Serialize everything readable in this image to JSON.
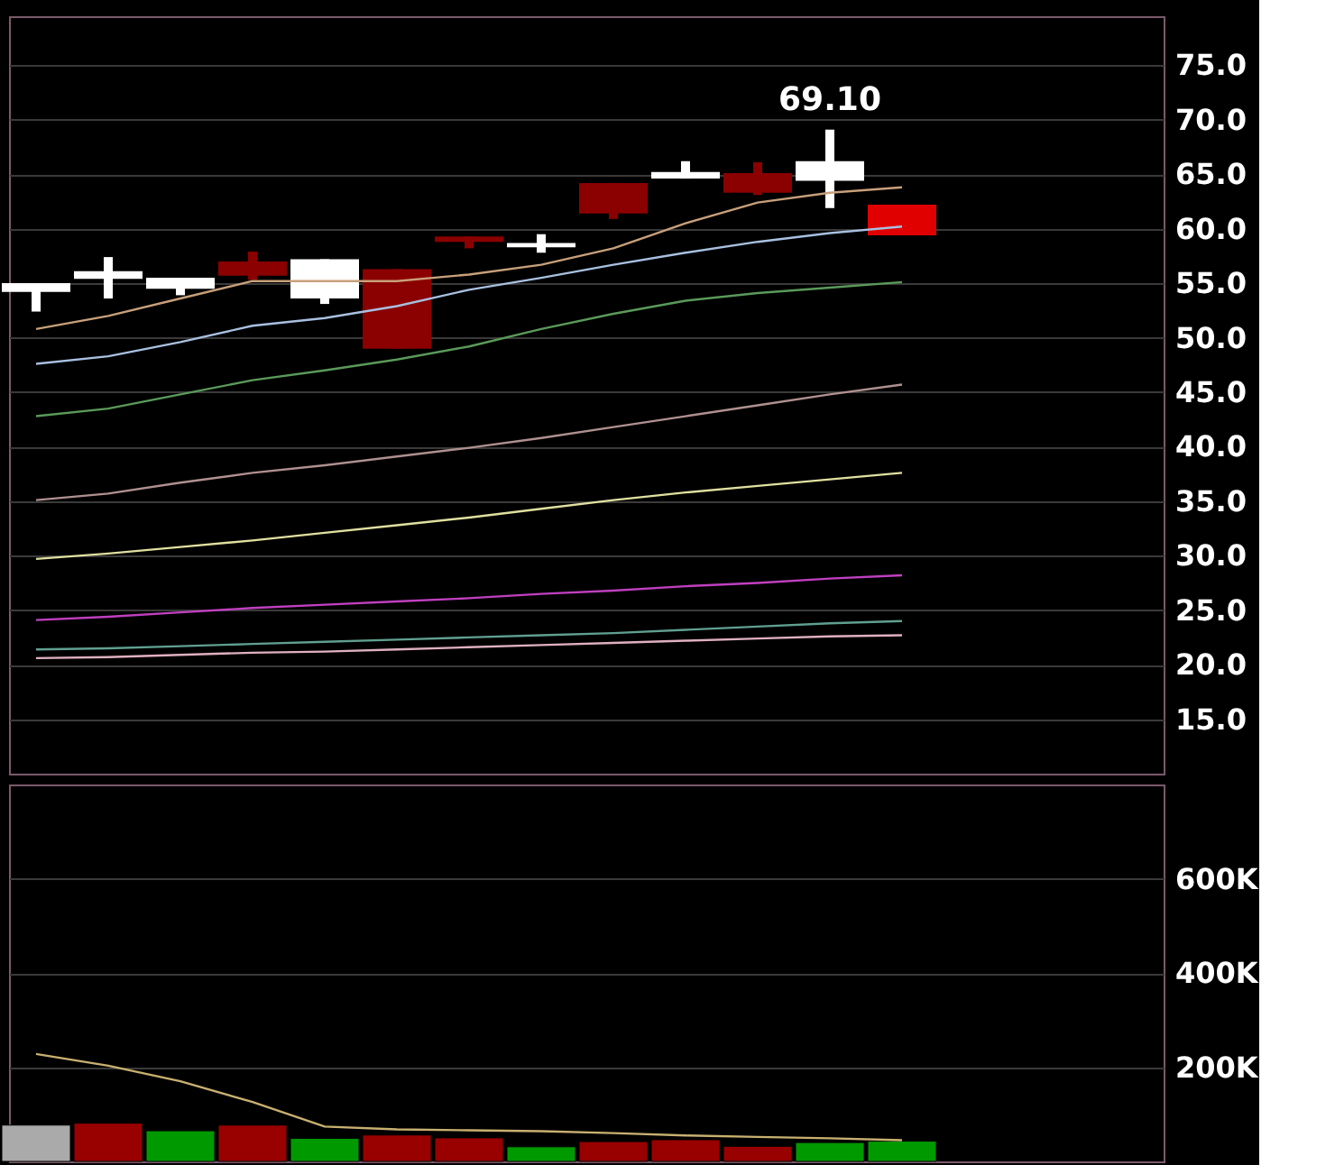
{
  "chart_data": [
    {
      "type": "candlestick",
      "categories": [
        null,
        null,
        null,
        null,
        null,
        null,
        null,
        null,
        null,
        null,
        null,
        null,
        null
      ],
      "ohlc": [
        [
          54.2,
          55.0,
          52.4,
          55.0
        ],
        [
          55.4,
          57.4,
          53.6,
          56.1
        ],
        [
          54.5,
          55.5,
          53.9,
          55.5
        ],
        [
          57.0,
          57.9,
          55.3,
          55.7
        ],
        [
          53.6,
          57.2,
          53.1,
          57.2
        ],
        [
          56.3,
          56.3,
          49.0,
          49.0
        ],
        [
          59.3,
          59.3,
          58.2,
          58.8
        ],
        [
          58.3,
          59.5,
          57.8,
          58.7
        ],
        [
          64.2,
          64.2,
          60.9,
          61.4
        ],
        [
          64.6,
          66.2,
          64.6,
          65.2
        ],
        [
          65.1,
          66.1,
          63.1,
          63.3
        ],
        [
          64.4,
          69.1,
          61.9,
          66.2
        ],
        [
          62.2,
          62.2,
          59.4,
          59.4
        ]
      ],
      "colors": [
        "#ffffff",
        "#ffffff",
        "#ffffff",
        "#8b0000",
        "#ffffff",
        "#8b0000",
        "#8b0000",
        "#ffffff",
        "#8b0000",
        "#ffffff",
        "#8b0000",
        "#ffffff",
        "#e00000"
      ],
      "series": [
        {
          "type": "line",
          "color": "#c8a07a",
          "values": [
            50.8,
            52.0,
            53.6,
            55.2,
            55.2,
            55.2,
            55.8,
            56.7,
            58.2,
            60.5,
            62.4,
            63.3,
            63.8
          ]
        },
        {
          "type": "line",
          "color": "#a8c0e0",
          "values": [
            47.6,
            48.3,
            49.6,
            51.1,
            51.8,
            52.9,
            54.4,
            55.5,
            56.7,
            57.8,
            58.8,
            59.6,
            60.2
          ]
        },
        {
          "type": "line",
          "color": "#5a9a5a",
          "values": [
            42.8,
            43.5,
            44.8,
            46.1,
            47.0,
            48.0,
            49.2,
            50.8,
            52.2,
            53.4,
            54.1,
            54.6,
            55.1
          ]
        },
        {
          "type": "line",
          "color": "#b09090",
          "values": [
            35.1,
            35.7,
            36.7,
            37.6,
            38.3,
            39.1,
            39.9,
            40.8,
            41.8,
            42.8,
            43.8,
            44.8,
            45.7
          ]
        },
        {
          "type": "line",
          "color": "#e0e0a0",
          "values": [
            29.7,
            30.2,
            30.8,
            31.4,
            32.1,
            32.8,
            33.5,
            34.3,
            35.1,
            35.8,
            36.4,
            37.0,
            37.6
          ]
        },
        {
          "type": "line",
          "color": "#c040c0",
          "values": [
            24.1,
            24.4,
            24.8,
            25.2,
            25.5,
            25.8,
            26.1,
            26.5,
            26.8,
            27.2,
            27.5,
            27.9,
            28.2
          ]
        },
        {
          "type": "line",
          "color": "#60a090",
          "values": [
            21.4,
            21.5,
            21.7,
            21.9,
            22.1,
            22.3,
            22.5,
            22.7,
            22.9,
            23.2,
            23.5,
            23.8,
            24.0
          ]
        },
        {
          "type": "line",
          "color": "#e0b0c0",
          "values": [
            20.6,
            20.7,
            20.9,
            21.1,
            21.2,
            21.4,
            21.6,
            21.8,
            22.0,
            22.2,
            22.4,
            22.6,
            22.7
          ]
        }
      ],
      "ylim": [
        10,
        79.5
      ],
      "yticks": [
        {
          "value": 15,
          "label": "15.0"
        },
        {
          "value": 20,
          "label": "20.0"
        },
        {
          "value": 25,
          "label": "25.0"
        },
        {
          "value": 30,
          "label": "30.0"
        },
        {
          "value": 35,
          "label": "35.0"
        },
        {
          "value": 40,
          "label": "40.0"
        },
        {
          "value": 45,
          "label": "45.0"
        },
        {
          "value": 50,
          "label": "50.0"
        },
        {
          "value": 55,
          "label": "55.0"
        },
        {
          "value": 60,
          "label": "60.0"
        },
        {
          "value": 65,
          "label": "65.0"
        },
        {
          "value": 70,
          "label": "70.0"
        },
        {
          "value": 75,
          "label": "75.0"
        }
      ],
      "annotations": [
        {
          "text": "69.10",
          "y": 69.1
        }
      ],
      "grid": "y",
      "tick_labels": "y"
    },
    {
      "type": "bar",
      "categories": [
        null,
        null,
        null,
        null,
        null,
        null,
        null,
        null,
        null,
        null,
        null,
        null,
        null
      ],
      "series": [
        {
          "type": "bar",
          "values": [
            77000,
            81000,
            65000,
            77000,
            49000,
            56000,
            50000,
            31000,
            42000,
            46000,
            32000,
            40000,
            43000
          ],
          "colors": [
            "#aaaaaa",
            "#990000",
            "#009900",
            "#990000",
            "#009900",
            "#990000",
            "#990000",
            "#009900",
            "#990000",
            "#990000",
            "#990000",
            "#009900",
            "#009900"
          ]
        },
        {
          "type": "line",
          "color": "#c8b070",
          "values": [
            228000,
            203000,
            170000,
            126000,
            74000,
            68000,
            66000,
            64000,
            60000,
            55000,
            52000,
            49000,
            45000
          ]
        }
      ],
      "ylim": [
        0,
        800000
      ],
      "yticks": [
        {
          "value": 200000,
          "label": "200K"
        },
        {
          "value": 400000,
          "label": "400K"
        },
        {
          "value": 600000,
          "label": "600K"
        }
      ],
      "grid": "y",
      "tick_labels": "y"
    }
  ]
}
